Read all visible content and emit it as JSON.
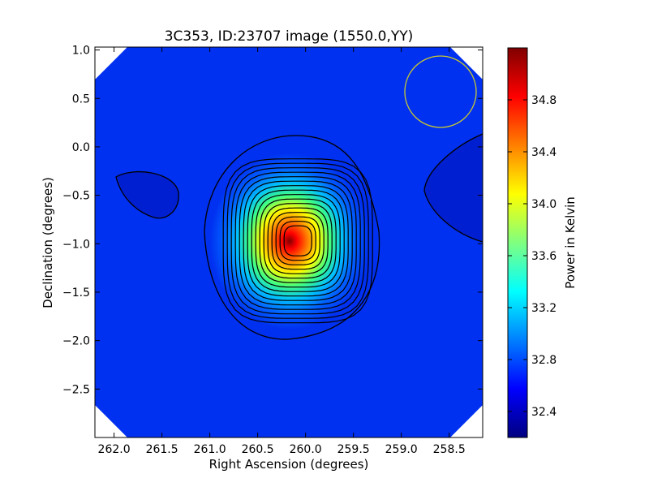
{
  "chart_data": {
    "type": "heatmap",
    "title": "3C353, ID:23707 image (1550.0,YY)",
    "xlabel": "Right Ascension (degrees)",
    "ylabel": "Declination (degrees)",
    "colorbar_label": "Power in Kelvin",
    "colormap": "jet",
    "x_inverted": true,
    "xlim": [
      262.2,
      258.15
    ],
    "ylim": [
      -3.0,
      1.03
    ],
    "x_ticks": [
      {
        "value": 262.0,
        "label": "262.0"
      },
      {
        "value": 261.5,
        "label": "261.5"
      },
      {
        "value": 261.0,
        "label": "261.0"
      },
      {
        "value": 260.5,
        "label": "260.5"
      },
      {
        "value": 260.0,
        "label": "260.0"
      },
      {
        "value": 259.5,
        "label": "259.5"
      },
      {
        "value": 259.0,
        "label": "259.0"
      },
      {
        "value": 258.5,
        "label": "258.5"
      }
    ],
    "y_ticks": [
      {
        "value": 1.0,
        "label": "1.0"
      },
      {
        "value": 0.5,
        "label": "0.5"
      },
      {
        "value": 0.0,
        "label": "0.0"
      },
      {
        "value": -0.5,
        "label": "−0.5"
      },
      {
        "value": -1.0,
        "label": "−1.0"
      },
      {
        "value": -1.5,
        "label": "−1.5"
      },
      {
        "value": -2.0,
        "label": "−2.0"
      },
      {
        "value": -2.5,
        "label": "−2.5"
      }
    ],
    "colorbar_range": [
      32.2,
      35.2
    ],
    "colorbar_ticks": [
      {
        "value": 32.4,
        "label": "32.4"
      },
      {
        "value": 32.8,
        "label": "32.8"
      },
      {
        "value": 33.2,
        "label": "33.2"
      },
      {
        "value": 33.6,
        "label": "33.6"
      },
      {
        "value": 34.0,
        "label": "34.0"
      },
      {
        "value": 34.4,
        "label": "34.4"
      },
      {
        "value": 34.8,
        "label": "34.8"
      }
    ],
    "source_peak": {
      "ra": 260.08,
      "dec": -0.97,
      "value": 35.2
    },
    "background_value": 32.5,
    "contour_count": 16,
    "beam_circle": {
      "ra": 258.5,
      "dec": 0.58,
      "radius_deg": 0.36,
      "color": "#c8c832"
    }
  }
}
